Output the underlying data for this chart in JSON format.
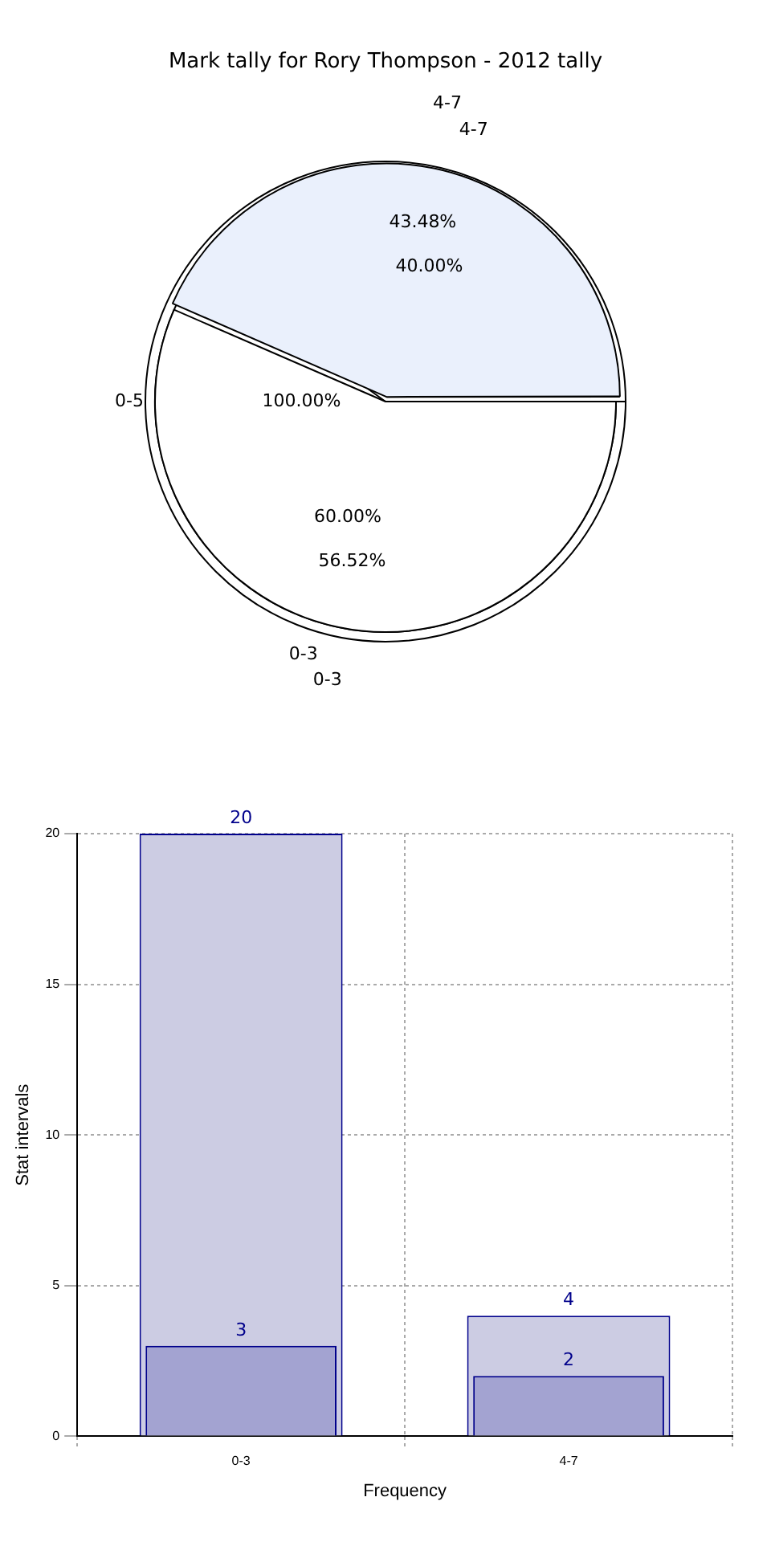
{
  "chart_data": [
    {
      "type": "pie",
      "title": "Mark tally for Rory Thompson - 2012 tally",
      "categories": [
        "0-5"
      ],
      "values": [
        100
      ],
      "value_labels": [
        "100.00%"
      ],
      "colors": [
        "#ffffff"
      ]
    },
    {
      "type": "pie",
      "categories": [
        "0-3",
        "4-7"
      ],
      "values": [
        60,
        40
      ],
      "value_labels": [
        "60.00%",
        "40.00%"
      ],
      "colors": [
        "#ffffff",
        "#eaf0fc"
      ]
    },
    {
      "type": "pie",
      "categories": [
        "0-3",
        "4-7"
      ],
      "values": [
        56.52,
        43.48
      ],
      "value_labels": [
        "56.52%",
        "43.48%"
      ],
      "colors": [
        "#ffffff",
        "#eaf0fc"
      ]
    },
    {
      "type": "bar",
      "categories": [
        "0-3",
        "4-7"
      ],
      "series": [
        {
          "color": "#ccccE3",
          "values": [
            20,
            4
          ]
        },
        {
          "color": "#a3a3d1",
          "values": [
            3,
            2
          ]
        }
      ],
      "ylim": [
        0,
        20
      ],
      "yticks": [
        0,
        5,
        10,
        15,
        20
      ],
      "xlabel": "Frequency",
      "ylabel": "Stat intervals",
      "grid": true,
      "data_labels": true
    }
  ]
}
